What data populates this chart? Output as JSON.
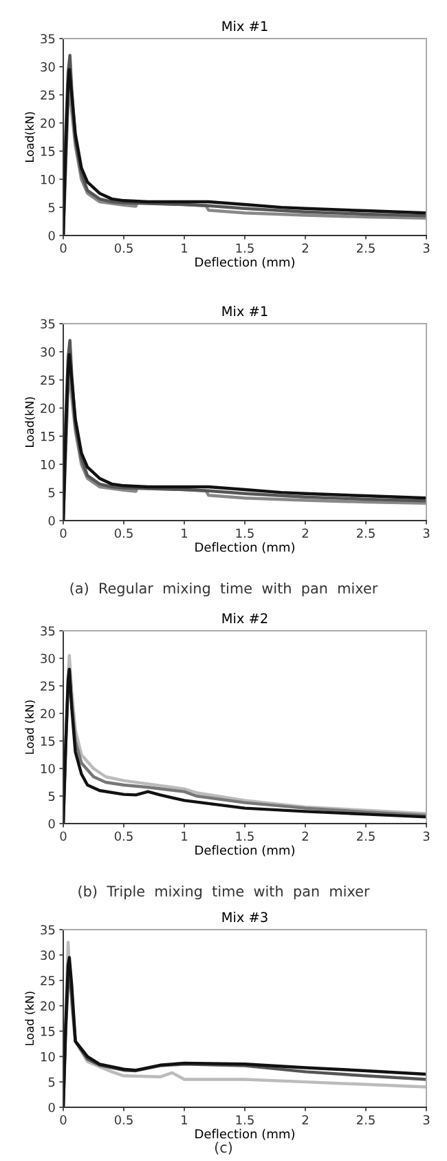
{
  "chart_data": [
    {
      "type": "line",
      "title": "Mix #1",
      "xlabel": "Deflection (mm)",
      "ylabel": "Load(kN)",
      "xlim": [
        0,
        3
      ],
      "ylim": [
        0,
        35
      ],
      "xticks": [
        0,
        0.5,
        1,
        1.5,
        2,
        2.5,
        3
      ],
      "yticks": [
        0,
        5,
        10,
        15,
        20,
        25,
        30,
        35
      ],
      "grid": false,
      "legend": false,
      "marker": "none",
      "line_style": "solid",
      "series": [
        {
          "color": "#888888",
          "x": [
            0,
            0.02,
            0.04,
            0.05,
            0.07,
            0.1,
            0.15,
            0.2,
            0.3,
            0.5,
            0.6,
            0.61,
            1.0,
            1.18,
            1.2,
            1.5,
            2,
            2.5,
            3
          ],
          "values": [
            0,
            12,
            24,
            26,
            22,
            16,
            10,
            7.5,
            6,
            5.4,
            5.2,
            5.8,
            5.5,
            5.3,
            4.5,
            4,
            3.6,
            3.3,
            3.1
          ]
        },
        {
          "color": "#555555",
          "x": [
            0,
            0.02,
            0.04,
            0.055,
            0.07,
            0.1,
            0.15,
            0.2,
            0.3,
            0.4,
            0.5,
            0.7,
            1.0,
            1.2,
            1.5,
            2,
            2.5,
            3
          ],
          "values": [
            0,
            18,
            29,
            32,
            26,
            17,
            11,
            8,
            6.5,
            6,
            5.8,
            5.7,
            5.5,
            5.3,
            4.8,
            4.2,
            3.8,
            3.5
          ]
        },
        {
          "color": "#111111",
          "x": [
            0,
            0.02,
            0.04,
            0.05,
            0.07,
            0.1,
            0.15,
            0.2,
            0.3,
            0.4,
            0.5,
            0.7,
            1.0,
            1.2,
            1.5,
            1.8,
            2.0,
            2.5,
            3.0
          ],
          "values": [
            0,
            15,
            27,
            29.5,
            25,
            18,
            12,
            9.5,
            7.5,
            6.5,
            6.2,
            6,
            6,
            6,
            5.5,
            5,
            4.8,
            4.4,
            4
          ]
        }
      ]
    },
    {
      "type": "line",
      "title": "Mix #1",
      "xlabel": "Deflection (mm)",
      "ylabel": "Load(kN)",
      "xlim": [
        0,
        3
      ],
      "ylim": [
        0,
        35
      ],
      "xticks": [
        0,
        0.5,
        1,
        1.5,
        2,
        2.5,
        3
      ],
      "yticks": [
        0,
        5,
        10,
        15,
        20,
        25,
        30,
        35
      ],
      "grid": false,
      "legend": false,
      "marker": "none",
      "line_style": "solid",
      "annotations": [
        "(a)  Regular  mixing  time  with  pan  mixer"
      ],
      "series": [
        {
          "color": "#888888",
          "x": [
            0,
            0.02,
            0.04,
            0.05,
            0.07,
            0.1,
            0.15,
            0.2,
            0.3,
            0.5,
            0.6,
            0.61,
            1.0,
            1.18,
            1.2,
            1.5,
            2,
            2.5,
            3
          ],
          "values": [
            0,
            12,
            24,
            26,
            22,
            16,
            10,
            7.5,
            6,
            5.4,
            5.2,
            5.8,
            5.5,
            5.3,
            4.5,
            4,
            3.6,
            3.3,
            3.1
          ]
        },
        {
          "color": "#555555",
          "x": [
            0,
            0.02,
            0.04,
            0.055,
            0.07,
            0.1,
            0.15,
            0.2,
            0.3,
            0.4,
            0.5,
            0.7,
            1.0,
            1.2,
            1.5,
            2,
            2.5,
            3
          ],
          "values": [
            0,
            18,
            29,
            32,
            26,
            17,
            11,
            8,
            6.5,
            6,
            5.8,
            5.7,
            5.5,
            5.3,
            4.8,
            4.2,
            3.8,
            3.5
          ]
        },
        {
          "color": "#111111",
          "x": [
            0,
            0.02,
            0.04,
            0.05,
            0.07,
            0.1,
            0.15,
            0.2,
            0.3,
            0.4,
            0.5,
            0.7,
            1.0,
            1.2,
            1.5,
            1.8,
            2.0,
            2.5,
            3.0
          ],
          "values": [
            0,
            15,
            27,
            29.5,
            25,
            18,
            12,
            9.5,
            7.5,
            6.5,
            6.2,
            6,
            6,
            6,
            5.5,
            5,
            4.8,
            4.4,
            4
          ]
        }
      ]
    },
    {
      "type": "line",
      "title": "Mix #2",
      "xlabel": "Deflection (mm)",
      "ylabel": "Load (kN)",
      "xlim": [
        0,
        3
      ],
      "ylim": [
        0,
        35
      ],
      "xticks": [
        0,
        0.5,
        1,
        1.5,
        2,
        2.5,
        3
      ],
      "yticks": [
        0,
        5,
        10,
        15,
        20,
        25,
        30,
        35
      ],
      "grid": false,
      "legend": false,
      "marker": "none",
      "line_style": "solid",
      "annotations": [
        "(b)  Triple  mixing  time  with  pan  mixer"
      ],
      "series": [
        {
          "color": "#bbbbbb",
          "x": [
            0,
            0.02,
            0.04,
            0.05,
            0.07,
            0.1,
            0.15,
            0.25,
            0.35,
            0.5,
            0.7,
            1.0,
            1.1,
            1.5,
            2,
            2.5,
            3
          ],
          "values": [
            0,
            15,
            27,
            30.5,
            24,
            17,
            12.5,
            10,
            8.5,
            7.8,
            7.2,
            6.3,
            5.6,
            4.2,
            3,
            2.4,
            1.8
          ]
        },
        {
          "color": "#777777",
          "x": [
            0,
            0.02,
            0.04,
            0.05,
            0.07,
            0.1,
            0.15,
            0.25,
            0.35,
            0.5,
            0.7,
            1.0,
            1.1,
            1.5,
            2,
            2.5,
            3
          ],
          "values": [
            0,
            14,
            25,
            28,
            22,
            15,
            11,
            8.5,
            7.5,
            7,
            6.6,
            5.8,
            5,
            3.8,
            2.8,
            2.1,
            1.5
          ]
        },
        {
          "color": "#111111",
          "x": [
            0,
            0.02,
            0.04,
            0.05,
            0.07,
            0.1,
            0.15,
            0.2,
            0.3,
            0.5,
            0.6,
            0.7,
            0.8,
            1.0,
            1.5,
            2,
            2.5,
            3
          ],
          "values": [
            0,
            14,
            26,
            28,
            21,
            13,
            9,
            7,
            6,
            5.3,
            5.2,
            5.8,
            5.2,
            4.2,
            2.8,
            2.2,
            1.7,
            1.2
          ]
        }
      ]
    },
    {
      "type": "line",
      "title": "Mix #3",
      "xlabel": "Deflection (mm)",
      "ylabel": "Load (kN)",
      "xlim": [
        0,
        3
      ],
      "ylim": [
        0,
        35
      ],
      "xticks": [
        0,
        0.5,
        1,
        1.5,
        2,
        2.5,
        3
      ],
      "yticks": [
        0,
        5,
        10,
        15,
        20,
        25,
        30,
        35
      ],
      "grid": false,
      "legend": false,
      "marker": "none",
      "line_style": "solid",
      "annotations": [
        "(c)"
      ],
      "series": [
        {
          "color": "#bbbbbb",
          "x": [
            0,
            0.02,
            0.04,
            0.05,
            0.07,
            0.1,
            0.2,
            0.4,
            0.5,
            0.8,
            0.9,
            1.0,
            1.5,
            2,
            2.5,
            3
          ],
          "values": [
            0,
            18,
            32.5,
            28,
            20,
            13,
            9,
            7,
            6.2,
            6,
            6.8,
            5.5,
            5.5,
            5,
            4.5,
            4
          ]
        },
        {
          "color": "#555555",
          "x": [
            0,
            0.02,
            0.04,
            0.05,
            0.07,
            0.1,
            0.2,
            0.3,
            0.5,
            0.6,
            0.8,
            1.0,
            1.5,
            2,
            2.5,
            3
          ],
          "values": [
            0,
            15,
            25,
            26,
            22,
            13,
            9.5,
            8.3,
            7.3,
            7.2,
            8.2,
            8.5,
            8.2,
            7,
            6.2,
            5.5
          ]
        },
        {
          "color": "#111111",
          "x": [
            0,
            0.02,
            0.04,
            0.05,
            0.07,
            0.1,
            0.2,
            0.3,
            0.5,
            0.6,
            0.8,
            1.0,
            1.5,
            2,
            2.5,
            3
          ],
          "values": [
            0,
            16,
            28,
            29.5,
            24,
            13,
            10,
            8.5,
            7.5,
            7.3,
            8.3,
            8.7,
            8.5,
            7.8,
            7.2,
            6.5
          ]
        }
      ]
    }
  ]
}
